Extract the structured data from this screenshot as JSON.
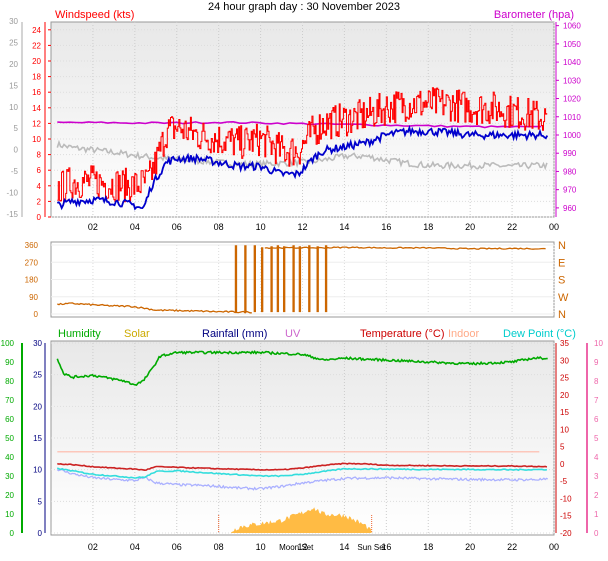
{
  "page_title": "24 hour graph day : 30 November 2023",
  "colors": {
    "windspeed": "#ff0000",
    "gust": "#ff0000",
    "avg_wind": "#0000cc",
    "barometer": "#cc00cc",
    "direction": "#cc6600",
    "humidity": "#00aa00",
    "solar": "#ccaa00",
    "rainfall": "#000080",
    "uv": "#cc66cc",
    "temperature": "#cc0000",
    "indoor": "#ffaa88",
    "dew_point": "#00cccc",
    "temp_line": "#cc2222",
    "indoor_line": "#ffb8a8",
    "dew_line": "#33dddd",
    "grey_line": "#bbbbbb",
    "lavender_line": "#aab0ff",
    "solar_fill": "#ffbb44"
  },
  "chart_data": [
    {
      "type": "line",
      "x_ticks": [
        "02",
        "04",
        "06",
        "08",
        "10",
        "12",
        "14",
        "16",
        "18",
        "20",
        "22",
        "00"
      ],
      "left_axis_label": "Windspeed (kts)",
      "left_ticks": [
        "0",
        "2",
        "4",
        "6",
        "8",
        "10",
        "12",
        "14",
        "16",
        "18",
        "20",
        "22",
        "24"
      ],
      "left_ylim": [
        0,
        25
      ],
      "right_axis_label": "Barometer (hpa)",
      "right_ticks": [
        "960",
        "970",
        "980",
        "990",
        "1000",
        "1010",
        "1020",
        "1030",
        "1040",
        "1050",
        "1060"
      ],
      "right_ylim": [
        955,
        1062
      ],
      "outer_left_ticks": [
        "-15",
        "-10",
        "-5",
        "0",
        "5",
        "10",
        "15",
        "20",
        "25",
        "30"
      ],
      "series": [
        {
          "name": "Windspeed (kts)",
          "key": "gust",
          "noise": 2.2,
          "x": [
            0.3,
            1.0,
            2.0,
            3.0,
            4.0,
            4.6,
            5.0,
            5.5,
            6.0,
            7.0,
            8.0,
            9.0,
            10.0,
            11.0,
            11.8,
            12.5,
            13.0,
            14.0,
            15.0,
            16.0,
            17.0,
            18.0,
            19.0,
            20.0,
            21.0,
            22.0,
            23.0,
            23.7
          ],
          "y": [
            3.5,
            4.5,
            4.5,
            4.2,
            4.0,
            4.5,
            7.0,
            11.0,
            11.5,
            10.5,
            10.0,
            9.5,
            10.0,
            8.5,
            8.5,
            11.0,
            12.0,
            12.5,
            13.0,
            14.0,
            14.5,
            14.5,
            14.5,
            14.0,
            14.0,
            13.5,
            13.0,
            12.5
          ]
        },
        {
          "key": "avg_wind",
          "noise": 0.5,
          "x": [
            0.3,
            1.0,
            2.0,
            3.0,
            4.0,
            4.4,
            4.8,
            5.5,
            6.0,
            7.0,
            8.0,
            9.0,
            10.0,
            11.0,
            11.8,
            12.5,
            13.0,
            14.0,
            15.0,
            16.0,
            17.0,
            18.0,
            19.0,
            20.0,
            21.0,
            22.0,
            23.0,
            23.7
          ],
          "y": [
            1.5,
            2.0,
            2.2,
            2.0,
            1.5,
            1.0,
            4.0,
            7.0,
            7.5,
            7.5,
            7.0,
            6.5,
            6.5,
            5.5,
            5.5,
            7.5,
            8.5,
            9.0,
            9.5,
            10.5,
            11.0,
            11.0,
            10.8,
            10.5,
            10.5,
            10.5,
            10.5,
            10.5
          ]
        },
        {
          "key": "baro",
          "noise": 0.5,
          "x": [
            0.3,
            2.0,
            4.0,
            6.0,
            8.0,
            10.0,
            12.0,
            14.0,
            16.0,
            18.0,
            20.0,
            22.0,
            23.7
          ],
          "y": [
            1006.8,
            1006.8,
            1006.6,
            1006.6,
            1007.0,
            1006.6,
            1006.2,
            1005.8,
            1005.4,
            1005.0,
            1004.6,
            1004.4,
            1004.2
          ]
        },
        {
          "key": "grey",
          "noise": 0.4,
          "x": [
            0.3,
            1.0,
            2.0,
            3.0,
            4.0,
            5.0,
            6.0,
            7.0,
            8.0,
            9.0,
            10.0,
            11.0,
            12.0,
            13.0,
            14.0,
            15.0,
            16.0,
            17.0,
            18.0,
            19.0,
            20.0,
            21.0,
            22.0,
            23.0,
            23.7
          ],
          "y": [
            9.3,
            8.9,
            8.6,
            8.3,
            7.9,
            7.6,
            7.4,
            7.2,
            7.0,
            6.8,
            6.8,
            6.9,
            7.0,
            7.3,
            7.8,
            7.8,
            7.3,
            6.9,
            6.6,
            6.6,
            6.6,
            6.6,
            6.5,
            6.6,
            6.6
          ]
        }
      ]
    },
    {
      "type": "line",
      "ylim": [
        0,
        360
      ],
      "left_ticks": [
        "0",
        "90",
        "180",
        "270",
        "360"
      ],
      "right_ticks": [
        "N",
        "W",
        "S",
        "E",
        "N"
      ],
      "series": [
        {
          "key": "direction",
          "noise": 4,
          "x": [
            0.3,
            1.0,
            2.0,
            3.0,
            3.8,
            4.5,
            5.0,
            6.0,
            7.0,
            8.0,
            9.0,
            9.6
          ],
          "y": [
            50,
            55,
            48,
            42,
            40,
            30,
            20,
            18,
            15,
            12,
            10,
            10
          ],
          "spikes": [
            [
              8.8,
              8.85,
              10,
              355
            ],
            [
              9.25,
              9.3,
              10,
              355
            ],
            [
              9.7,
              9.75,
              10,
              355
            ],
            [
              10.05,
              10.1,
              10,
              345
            ],
            [
              10.5,
              10.55,
              10,
              350
            ],
            [
              10.8,
              10.85,
              10,
              355
            ],
            [
              11.1,
              11.15,
              10,
              350
            ],
            [
              11.55,
              11.6,
              10,
              355
            ],
            [
              11.85,
              11.9,
              10,
              350
            ],
            [
              12.3,
              12.35,
              10,
              355
            ],
            [
              12.7,
              12.75,
              10,
              350
            ],
            [
              13.1,
              13.15,
              10,
              355
            ]
          ]
        },
        {
          "key": "direction_high",
          "noise": 3,
          "x": [
            10.2,
            11.0,
            12.0,
            13.0,
            14.0,
            16.0,
            18.0,
            20.0,
            22.0,
            23.7
          ],
          "y": [
            345,
            345,
            345,
            345,
            348,
            345,
            345,
            340,
            342,
            340
          ]
        }
      ]
    },
    {
      "type": "line",
      "labels": {
        "humidity": "Humidity",
        "solar": "Solar",
        "rainfall": "Rainfall (mm)",
        "uv": "UV",
        "temperature": "Temperature (°C)",
        "indoor": "Indoor",
        "dew_point": "Dew Point (°C)"
      },
      "left_outer_ticks": [
        "0",
        "10",
        "20",
        "30",
        "40",
        "50",
        "60",
        "70",
        "80",
        "90",
        "100"
      ],
      "left_inner_ticks": [
        "0",
        "5",
        "10",
        "15",
        "20",
        "25",
        "30"
      ],
      "right_inner_ticks": [
        "-20",
        "-15",
        "-10",
        "-5",
        "0",
        "5",
        "10",
        "15",
        "20",
        "25",
        "30",
        "35"
      ],
      "right_outer_ticks": [
        "0",
        "1",
        "2",
        "3",
        "4",
        "5",
        "6",
        "7",
        "8",
        "9",
        "10"
      ],
      "x_ticks": [
        "02",
        "04",
        "06",
        "08",
        "10",
        "14",
        "16",
        "18",
        "20",
        "22",
        "00"
      ],
      "x_special": [
        "Moon Set",
        "12",
        "Sun Set",
        "16"
      ],
      "humidity_ylim": [
        0,
        100
      ],
      "temp_ylim": [
        -20,
        35
      ],
      "series": [
        {
          "name": "Humidity",
          "key": "humidity",
          "noise": 0.6,
          "x": [
            0.3,
            0.6,
            1.0,
            2.0,
            2.5,
            3.0,
            3.5,
            4.0,
            4.4,
            4.8,
            5.2,
            6.0,
            8.0,
            10.0,
            12.0,
            13.0,
            14.0,
            16.0,
            18.0,
            20.0,
            22.0,
            23.0,
            23.7
          ],
          "y": [
            92,
            84,
            82,
            83,
            82,
            81,
            80,
            78,
            80,
            86,
            93,
            95,
            95,
            95,
            94,
            91,
            92,
            91,
            90,
            89,
            90,
            92,
            92
          ]
        },
        {
          "name": "Temperature (°C)",
          "key": "temperature",
          "noise": 0.12,
          "x": [
            0.3,
            1.0,
            2.0,
            3.0,
            4.0,
            4.5,
            5.0,
            6.0,
            8.0,
            10.0,
            11.0,
            12.0,
            13.0,
            14.0,
            15.0,
            16.0,
            18.0,
            20.0,
            22.0,
            23.7
          ],
          "y": [
            0.0,
            -0.2,
            -0.8,
            -1.2,
            -1.5,
            -1.8,
            -0.8,
            -1.0,
            -1.4,
            -1.7,
            -1.7,
            -1.2,
            -0.4,
            0.1,
            0.0,
            -0.4,
            -0.5,
            -0.6,
            -0.6,
            -0.8
          ]
        },
        {
          "name": "Indoor",
          "key": "indoor",
          "noise": 0.0,
          "x": [
            0.3,
            23.7
          ],
          "y": [
            3.5,
            3.5
          ]
        },
        {
          "name": "Dew Point (°C)",
          "key": "dew_point",
          "noise": 0.15,
          "x": [
            0.3,
            1.0,
            2.0,
            3.0,
            4.0,
            4.5,
            5.0,
            6.0,
            8.0,
            10.0,
            11.0,
            12.0,
            13.0,
            14.0,
            16.0,
            18.0,
            20.0,
            22.0,
            23.7
          ],
          "y": [
            -1.3,
            -2.0,
            -3.0,
            -3.5,
            -4.0,
            -3.8,
            -2.2,
            -2.0,
            -2.8,
            -3.5,
            -3.5,
            -3.0,
            -2.2,
            -1.4,
            -1.5,
            -1.6,
            -1.6,
            -1.7,
            -1.6
          ]
        },
        {
          "key": "lavender",
          "noise": 0.35,
          "x": [
            0.3,
            1.0,
            2.0,
            3.0,
            4.0,
            4.5,
            5.0,
            6.0,
            7.0,
            8.0,
            9.0,
            10.0,
            11.0,
            12.0,
            13.0,
            14.0,
            16.0,
            18.0,
            20.0,
            22.0,
            23.7
          ],
          "y": [
            -1.5,
            -2.8,
            -4.0,
            -4.5,
            -4.8,
            -4.0,
            -5.5,
            -6.0,
            -6.2,
            -6.5,
            -7.0,
            -7.2,
            -6.5,
            -5.5,
            -4.8,
            -4.2,
            -4.0,
            -4.3,
            -4.5,
            -4.6,
            -4.5
          ]
        },
        {
          "name": "Solar",
          "key": "solar",
          "noise": 0.4,
          "x": [
            8.6,
            9.0,
            10.0,
            11.0,
            12.0,
            12.5,
            13.0,
            14.0,
            15.0,
            15.3
          ],
          "y": [
            0.3,
            1.0,
            1.5,
            2.0,
            3.2,
            4.0,
            3.0,
            2.8,
            1.2,
            0.2
          ]
        }
      ]
    }
  ]
}
